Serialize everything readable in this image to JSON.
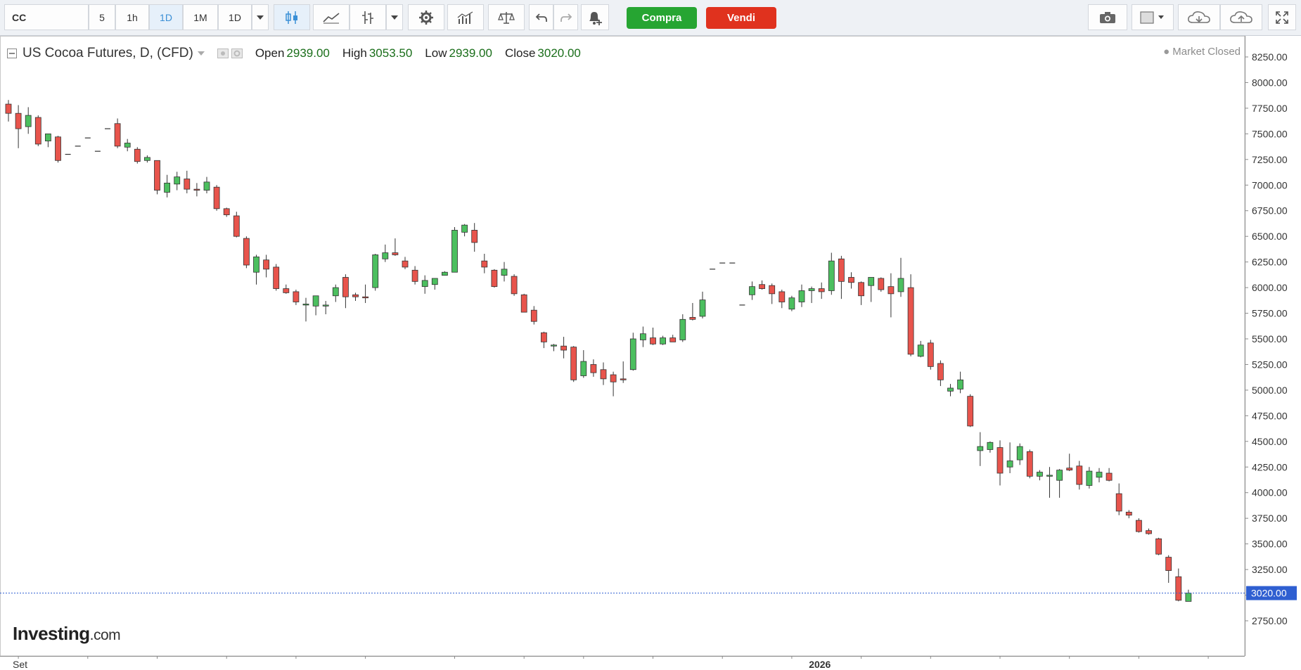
{
  "toolbar": {
    "symbol": "CC",
    "intervals": [
      "5",
      "1h",
      "1D",
      "1M",
      "1D"
    ],
    "active_interval": "1D",
    "buy_label": "Compra",
    "sell_label": "Vendi",
    "icons": [
      "candlestick-icon",
      "line-chart-icon",
      "indicator-icon",
      "dropdown-icon",
      "settings-icon",
      "bar-chart-icon",
      "compare-icon",
      "undo-icon",
      "redo-icon",
      "alert-icon",
      "camera-icon",
      "layout-icon",
      "cloud-download-icon",
      "cloud-upload-icon",
      "fullscreen-icon"
    ]
  },
  "legend": {
    "title": "US Cocoa Futures, D, (CFD)",
    "open_label": "Open",
    "open_value": "2939.00",
    "high_label": "High",
    "high_value": "3053.50",
    "low_label": "Low",
    "low_value": "2939.00",
    "close_label": "Close",
    "close_value": "3020.00"
  },
  "market_status": "Market Closed",
  "watermark": {
    "brand": "Investing",
    "domain": ".com"
  },
  "colors": {
    "up": "#4cbf5f",
    "down": "#e8544c",
    "price_line": "#2f5fd1",
    "price_tag_bg": "#2f5fd1"
  },
  "chart_data": {
    "type": "candlestick",
    "title": "US Cocoa Futures, D, (CFD)",
    "y_axis_side": "right",
    "ylim": [
      2620,
      8360
    ],
    "y_ticks": [
      2750,
      3000,
      3250,
      3500,
      3750,
      4000,
      4250,
      4500,
      4750,
      5000,
      5250,
      5500,
      5750,
      6000,
      6250,
      6500,
      6750,
      7000,
      7250,
      7500,
      7750,
      8000,
      8250
    ],
    "y_tick_labels": [
      "2750.00",
      "3000.00",
      "3250.00",
      "3500.00",
      "3750.00",
      "4000.00",
      "4250.00",
      "4500.00",
      "4750.00",
      "5000.00",
      "5250.00",
      "5500.00",
      "5750.00",
      "6000.00",
      "6250.00",
      "6500.00",
      "6750.00",
      "7000.00",
      "7250.00",
      "7500.00",
      "7750.00",
      "8000.00",
      "8250.00"
    ],
    "x_labels": [
      {
        "label": "Set",
        "index": 1
      },
      {
        "label": "2026",
        "index": 82
      }
    ],
    "x_ticks": [
      1,
      8,
      15,
      22,
      29,
      36,
      45,
      52,
      58,
      65,
      72,
      79,
      86,
      93,
      100,
      107,
      114,
      121
    ],
    "last_price": 3020.0,
    "last_price_label": "3020.00",
    "grid": false,
    "candles": [
      {
        "o": 7790,
        "h": 7830,
        "l": 7620,
        "c": 7700
      },
      {
        "o": 7700,
        "h": 7780,
        "l": 7360,
        "c": 7550
      },
      {
        "o": 7570,
        "h": 7760,
        "l": 7500,
        "c": 7680
      },
      {
        "o": 7660,
        "h": 7680,
        "l": 7380,
        "c": 7400
      },
      {
        "o": 7430,
        "h": 7500,
        "l": 7370,
        "c": 7500
      },
      {
        "o": 7470,
        "h": 7480,
        "l": 7220,
        "c": 7240
      },
      {
        "o": 7300,
        "h": 7300,
        "l": 7300,
        "c": 7300
      },
      {
        "o": 7380,
        "h": 7380,
        "l": 7380,
        "c": 7380
      },
      {
        "o": 7460,
        "h": 7460,
        "l": 7460,
        "c": 7460
      },
      {
        "o": 7330,
        "h": 7330,
        "l": 7330,
        "c": 7330
      },
      {
        "o": 7550,
        "h": 7550,
        "l": 7550,
        "c": 7550
      },
      {
        "o": 7600,
        "h": 7650,
        "l": 7360,
        "c": 7380
      },
      {
        "o": 7370,
        "h": 7450,
        "l": 7330,
        "c": 7410
      },
      {
        "o": 7350,
        "h": 7370,
        "l": 7210,
        "c": 7230
      },
      {
        "o": 7240,
        "h": 7290,
        "l": 7220,
        "c": 7270
      },
      {
        "o": 7240,
        "h": 7240,
        "l": 6910,
        "c": 6950
      },
      {
        "o": 6930,
        "h": 7100,
        "l": 6880,
        "c": 7020
      },
      {
        "o": 7010,
        "h": 7130,
        "l": 6950,
        "c": 7080
      },
      {
        "o": 7060,
        "h": 7140,
        "l": 6920,
        "c": 6960
      },
      {
        "o": 6960,
        "h": 7020,
        "l": 6890,
        "c": 6950
      },
      {
        "o": 6950,
        "h": 7080,
        "l": 6920,
        "c": 7030
      },
      {
        "o": 6980,
        "h": 7000,
        "l": 6750,
        "c": 6770
      },
      {
        "o": 6770,
        "h": 6780,
        "l": 6690,
        "c": 6710
      },
      {
        "o": 6700,
        "h": 6740,
        "l": 6490,
        "c": 6500
      },
      {
        "o": 6480,
        "h": 6500,
        "l": 6190,
        "c": 6220
      },
      {
        "o": 6150,
        "h": 6320,
        "l": 6030,
        "c": 6300
      },
      {
        "o": 6270,
        "h": 6320,
        "l": 6100,
        "c": 6180
      },
      {
        "o": 6200,
        "h": 6230,
        "l": 5970,
        "c": 5990
      },
      {
        "o": 5990,
        "h": 6030,
        "l": 5940,
        "c": 5950
      },
      {
        "o": 5960,
        "h": 5980,
        "l": 5830,
        "c": 5860
      },
      {
        "o": 5840,
        "h": 5900,
        "l": 5670,
        "c": 5840
      },
      {
        "o": 5820,
        "h": 5920,
        "l": 5730,
        "c": 5920
      },
      {
        "o": 5830,
        "h": 5870,
        "l": 5740,
        "c": 5830
      },
      {
        "o": 5920,
        "h": 6030,
        "l": 5860,
        "c": 6000
      },
      {
        "o": 6100,
        "h": 6130,
        "l": 5800,
        "c": 5910
      },
      {
        "o": 5930,
        "h": 5950,
        "l": 5870,
        "c": 5910
      },
      {
        "o": 5910,
        "h": 6030,
        "l": 5850,
        "c": 5900
      },
      {
        "o": 6000,
        "h": 6330,
        "l": 5970,
        "c": 6320
      },
      {
        "o": 6280,
        "h": 6420,
        "l": 6250,
        "c": 6340
      },
      {
        "o": 6340,
        "h": 6480,
        "l": 6310,
        "c": 6320
      },
      {
        "o": 6260,
        "h": 6300,
        "l": 6180,
        "c": 6200
      },
      {
        "o": 6170,
        "h": 6210,
        "l": 6030,
        "c": 6060
      },
      {
        "o": 6010,
        "h": 6120,
        "l": 5940,
        "c": 6070
      },
      {
        "o": 6030,
        "h": 6090,
        "l": 5980,
        "c": 6090
      },
      {
        "o": 6120,
        "h": 6160,
        "l": 6130,
        "c": 6150
      },
      {
        "o": 6150,
        "h": 6590,
        "l": 6150,
        "c": 6560
      },
      {
        "o": 6540,
        "h": 6620,
        "l": 6500,
        "c": 6610
      },
      {
        "o": 6560,
        "h": 6630,
        "l": 6350,
        "c": 6440
      },
      {
        "o": 6260,
        "h": 6330,
        "l": 6140,
        "c": 6200
      },
      {
        "o": 6170,
        "h": 6180,
        "l": 6000,
        "c": 6010
      },
      {
        "o": 6120,
        "h": 6250,
        "l": 6060,
        "c": 6180
      },
      {
        "o": 6110,
        "h": 6130,
        "l": 5920,
        "c": 5940
      },
      {
        "o": 5930,
        "h": 5940,
        "l": 5760,
        "c": 5760
      },
      {
        "o": 5780,
        "h": 5820,
        "l": 5640,
        "c": 5670
      },
      {
        "o": 5560,
        "h": 5570,
        "l": 5410,
        "c": 5470
      },
      {
        "o": 5440,
        "h": 5450,
        "l": 5380,
        "c": 5440
      },
      {
        "o": 5430,
        "h": 5520,
        "l": 5310,
        "c": 5390
      },
      {
        "o": 5420,
        "h": 5430,
        "l": 5080,
        "c": 5100
      },
      {
        "o": 5140,
        "h": 5390,
        "l": 5120,
        "c": 5280
      },
      {
        "o": 5250,
        "h": 5300,
        "l": 5130,
        "c": 5170
      },
      {
        "o": 5200,
        "h": 5270,
        "l": 5050,
        "c": 5110
      },
      {
        "o": 5150,
        "h": 5180,
        "l": 4940,
        "c": 5080
      },
      {
        "o": 5110,
        "h": 5280,
        "l": 5070,
        "c": 5100
      },
      {
        "o": 5200,
        "h": 5560,
        "l": 5190,
        "c": 5500
      },
      {
        "o": 5490,
        "h": 5620,
        "l": 5420,
        "c": 5550
      },
      {
        "o": 5510,
        "h": 5610,
        "l": 5440,
        "c": 5450
      },
      {
        "o": 5450,
        "h": 5530,
        "l": 5440,
        "c": 5510
      },
      {
        "o": 5510,
        "h": 5540,
        "l": 5470,
        "c": 5470
      },
      {
        "o": 5490,
        "h": 5740,
        "l": 5470,
        "c": 5690
      },
      {
        "o": 5710,
        "h": 5850,
        "l": 5680,
        "c": 5690
      },
      {
        "o": 5720,
        "h": 5960,
        "l": 5700,
        "c": 5880
      },
      {
        "o": 6180,
        "h": 6180,
        "l": 6180,
        "c": 6180
      },
      {
        "o": 6240,
        "h": 6240,
        "l": 6240,
        "c": 6240
      },
      {
        "o": 6240,
        "h": 6240,
        "l": 6240,
        "c": 6240
      },
      {
        "o": 5830,
        "h": 5830,
        "l": 5830,
        "c": 5830
      },
      {
        "o": 5930,
        "h": 6060,
        "l": 5880,
        "c": 6010
      },
      {
        "o": 6030,
        "h": 6070,
        "l": 5980,
        "c": 5990
      },
      {
        "o": 6020,
        "h": 6040,
        "l": 5840,
        "c": 5940
      },
      {
        "o": 5960,
        "h": 5980,
        "l": 5800,
        "c": 5860
      },
      {
        "o": 5790,
        "h": 5920,
        "l": 5770,
        "c": 5900
      },
      {
        "o": 5860,
        "h": 6030,
        "l": 5810,
        "c": 5970
      },
      {
        "o": 5970,
        "h": 6010,
        "l": 5850,
        "c": 5990
      },
      {
        "o": 5990,
        "h": 6050,
        "l": 5890,
        "c": 5960
      },
      {
        "o": 5970,
        "h": 6340,
        "l": 5930,
        "c": 6260
      },
      {
        "o": 6280,
        "h": 6310,
        "l": 5890,
        "c": 6060
      },
      {
        "o": 6100,
        "h": 6150,
        "l": 5990,
        "c": 6050
      },
      {
        "o": 6050,
        "h": 6060,
        "l": 5830,
        "c": 5920
      },
      {
        "o": 6020,
        "h": 6100,
        "l": 5860,
        "c": 6100
      },
      {
        "o": 6090,
        "h": 6100,
        "l": 5960,
        "c": 5980
      },
      {
        "o": 6010,
        "h": 6140,
        "l": 5710,
        "c": 5940
      },
      {
        "o": 5960,
        "h": 6290,
        "l": 5910,
        "c": 6090
      },
      {
        "o": 6000,
        "h": 6130,
        "l": 5330,
        "c": 5350
      },
      {
        "o": 5330,
        "h": 5480,
        "l": 5320,
        "c": 5440
      },
      {
        "o": 5460,
        "h": 5490,
        "l": 5200,
        "c": 5230
      },
      {
        "o": 5260,
        "h": 5290,
        "l": 5040,
        "c": 5100
      },
      {
        "o": 4990,
        "h": 5060,
        "l": 4940,
        "c": 5020
      },
      {
        "o": 5010,
        "h": 5180,
        "l": 4970,
        "c": 5100
      },
      {
        "o": 4940,
        "h": 4960,
        "l": 4640,
        "c": 4650
      },
      {
        "o": 4410,
        "h": 4590,
        "l": 4260,
        "c": 4450
      },
      {
        "o": 4420,
        "h": 4500,
        "l": 4390,
        "c": 4490
      },
      {
        "o": 4440,
        "h": 4510,
        "l": 4070,
        "c": 4190
      },
      {
        "o": 4250,
        "h": 4490,
        "l": 4190,
        "c": 4310
      },
      {
        "o": 4320,
        "h": 4480,
        "l": 4270,
        "c": 4450
      },
      {
        "o": 4400,
        "h": 4420,
        "l": 4140,
        "c": 4160
      },
      {
        "o": 4160,
        "h": 4220,
        "l": 4120,
        "c": 4200
      },
      {
        "o": 4170,
        "h": 4250,
        "l": 3950,
        "c": 4170
      },
      {
        "o": 4120,
        "h": 4230,
        "l": 3950,
        "c": 4220
      },
      {
        "o": 4240,
        "h": 4380,
        "l": 4210,
        "c": 4220
      },
      {
        "o": 4260,
        "h": 4310,
        "l": 4030,
        "c": 4080
      },
      {
        "o": 4070,
        "h": 4250,
        "l": 4040,
        "c": 4210
      },
      {
        "o": 4150,
        "h": 4240,
        "l": 4100,
        "c": 4200
      },
      {
        "o": 4190,
        "h": 4240,
        "l": 4110,
        "c": 4120
      },
      {
        "o": 3990,
        "h": 4090,
        "l": 3780,
        "c": 3820
      },
      {
        "o": 3810,
        "h": 3830,
        "l": 3750,
        "c": 3780
      },
      {
        "o": 3730,
        "h": 3750,
        "l": 3610,
        "c": 3620
      },
      {
        "o": 3630,
        "h": 3650,
        "l": 3590,
        "c": 3600
      },
      {
        "o": 3550,
        "h": 3560,
        "l": 3390,
        "c": 3400
      },
      {
        "o": 3370,
        "h": 3390,
        "l": 3120,
        "c": 3240
      },
      {
        "o": 3180,
        "h": 3260,
        "l": 2940,
        "c": 2950
      },
      {
        "o": 2939,
        "h": 3053.5,
        "l": 2939,
        "c": 3020
      }
    ]
  }
}
